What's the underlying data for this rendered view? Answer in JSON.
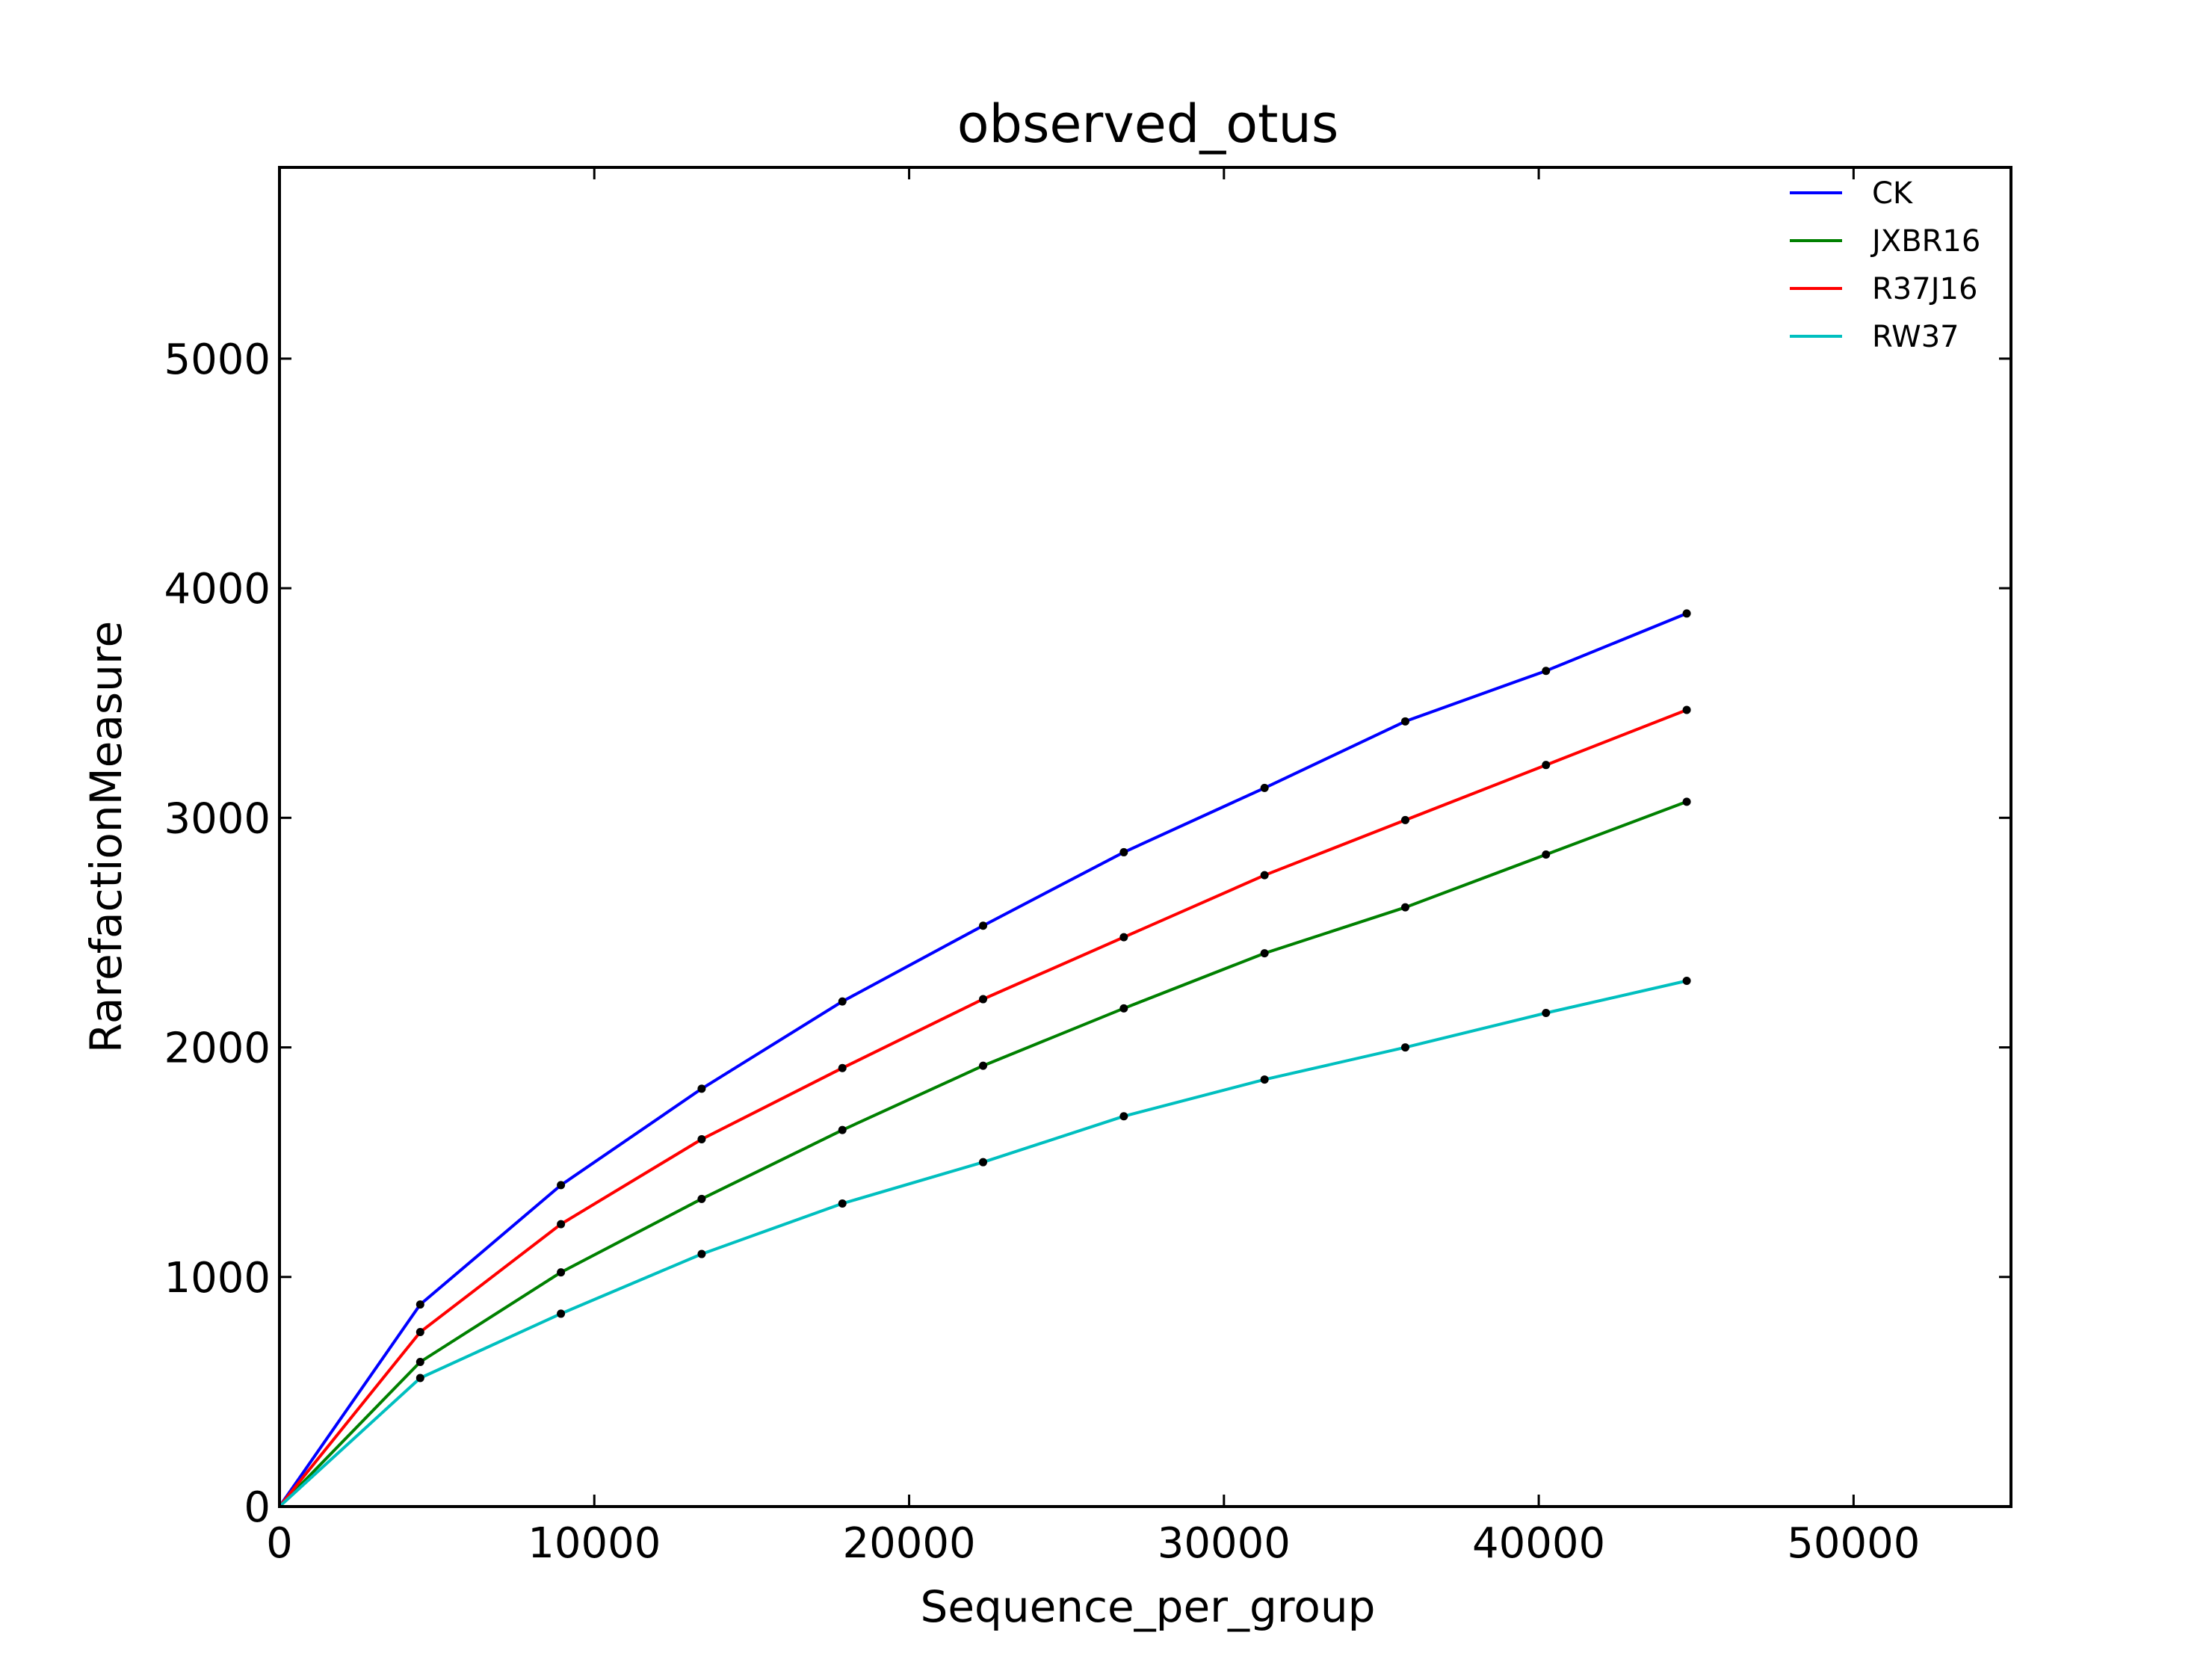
{
  "chart_data": {
    "type": "line",
    "title": "observed_otus",
    "xlabel": "Sequence_per_group",
    "ylabel": "RarefactionMeasure",
    "xlim": [
      0,
      55000
    ],
    "ylim": [
      0,
      5833
    ],
    "xticks": [
      0,
      10000,
      20000,
      30000,
      40000,
      50000
    ],
    "yticks": [
      0,
      1000,
      2000,
      3000,
      4000,
      5000
    ],
    "xtick_labels": [
      "0",
      "10000",
      "20000",
      "30000",
      "40000",
      "50000"
    ],
    "ytick_labels": [
      "0",
      "1000",
      "2000",
      "3000",
      "4000",
      "5000"
    ],
    "legend_position": "top-right",
    "grid": false,
    "x": [
      0,
      4470,
      8940,
      13410,
      17880,
      22350,
      26820,
      31290,
      35760,
      40230,
      44700
    ],
    "series": [
      {
        "name": "CK",
        "color": "#0000ff",
        "values": [
          0,
          880,
          1400,
          1820,
          2200,
          2530,
          2850,
          3130,
          3420,
          3640,
          3890
        ]
      },
      {
        "name": "JXBR16",
        "color": "#008000",
        "values": [
          0,
          630,
          1020,
          1340,
          1640,
          1920,
          2170,
          2410,
          2610,
          2840,
          3070
        ]
      },
      {
        "name": "R37J16",
        "color": "#ff0000",
        "values": [
          0,
          760,
          1230,
          1600,
          1910,
          2210,
          2480,
          2750,
          2990,
          3230,
          3470
        ]
      },
      {
        "name": "RW37",
        "color": "#00bfbf",
        "values": [
          0,
          560,
          840,
          1100,
          1320,
          1500,
          1700,
          1860,
          2000,
          2150,
          2290
        ]
      }
    ],
    "marker_color": "#000000"
  }
}
